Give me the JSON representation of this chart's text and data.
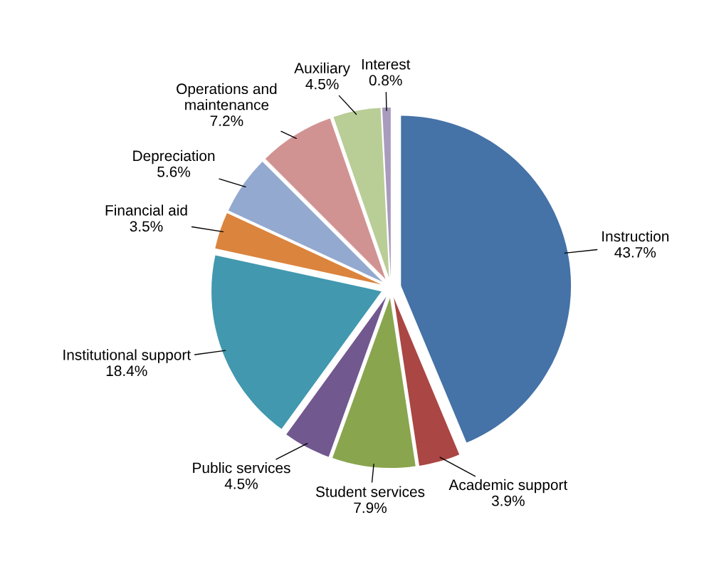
{
  "chart_data": {
    "type": "pie",
    "categories": [
      "Instruction",
      "Academic support",
      "Student services",
      "Public services",
      "Institutional support",
      "Financial aid",
      "Depreciation",
      "Operations and\nmaintenance",
      "Auxiliary",
      "Interest"
    ],
    "values": [
      43.7,
      3.9,
      7.9,
      4.5,
      18.4,
      3.5,
      5.6,
      7.2,
      4.5,
      0.8
    ],
    "value_labels": [
      "43.7%",
      "3.9%",
      "7.9%",
      "4.5%",
      "18.4%",
      "3.5%",
      "5.6%",
      "7.2%",
      "4.5%",
      "0.8%"
    ],
    "colors": [
      "#4572a7",
      "#aa4643",
      "#89a54e",
      "#71588f",
      "#4198af",
      "#db843d",
      "#93a9cf",
      "#d19392",
      "#b9cd96",
      "#a99bbd"
    ],
    "legend": false
  }
}
